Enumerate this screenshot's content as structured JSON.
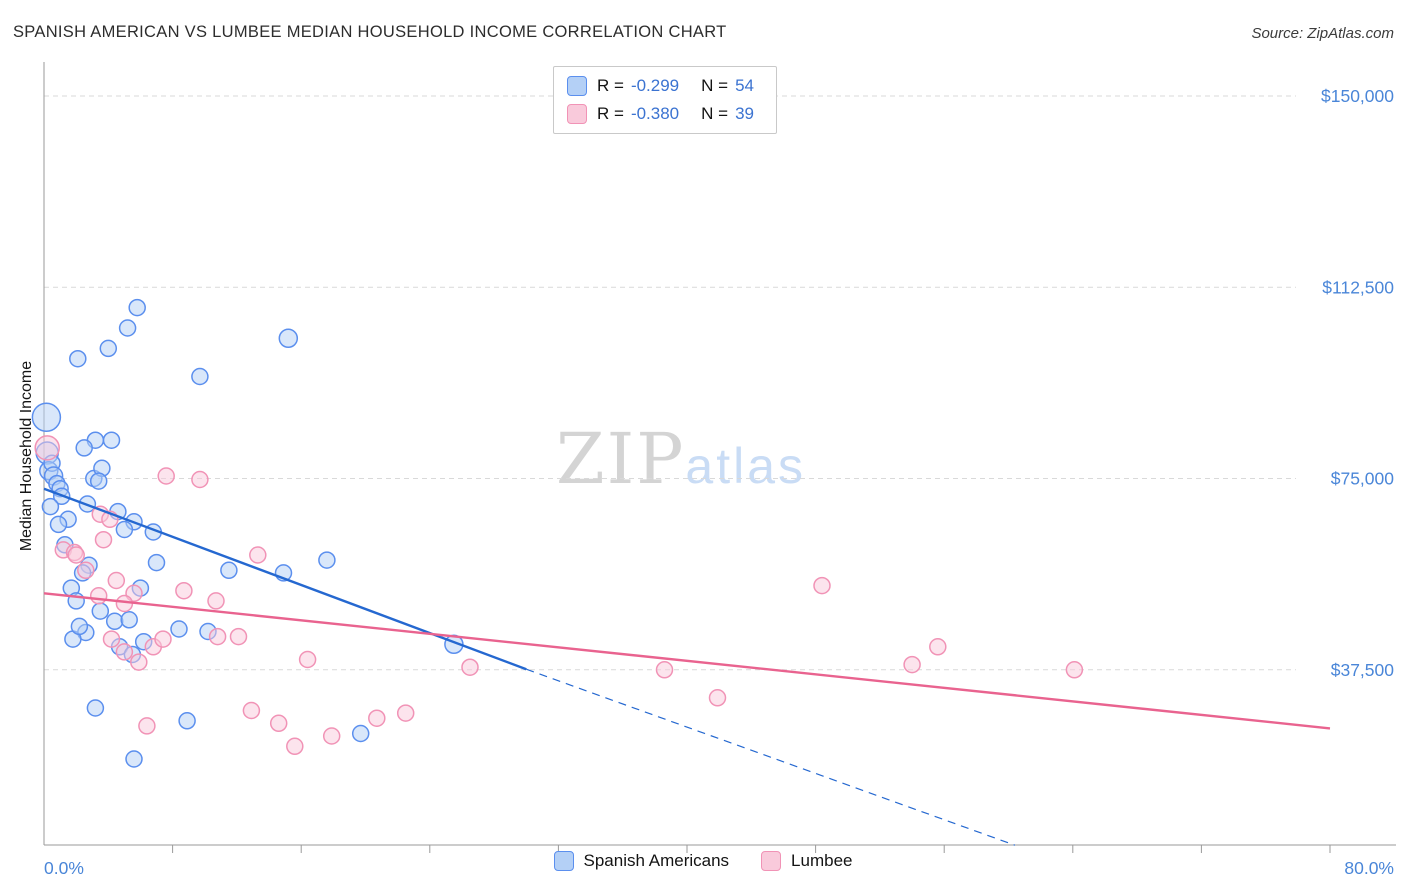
{
  "header": {
    "title": "SPANISH AMERICAN VS LUMBEE MEDIAN HOUSEHOLD INCOME CORRELATION CHART",
    "source": "Source: ZipAtlas.com"
  },
  "watermark": {
    "part1": "ZIP",
    "part2": "atlas"
  },
  "top_legend": {
    "rows": [
      {
        "r_label": "R =",
        "r_value": "-0.299",
        "n_label": "N =",
        "n_value": "54"
      },
      {
        "r_label": "R =",
        "r_value": "-0.380",
        "n_label": "N =",
        "n_value": "39"
      }
    ]
  },
  "bottom_legend": {
    "items": [
      {
        "label": "Spanish Americans"
      },
      {
        "label": "Lumbee"
      }
    ]
  },
  "colors": {
    "blue_fill": "#b4d0f6",
    "blue_stroke": "#5b8fee",
    "pink_fill": "#f9cadb",
    "pink_stroke": "#f193b6",
    "blue_trend": "#2568d0",
    "pink_trend": "#e9638f",
    "axis_label": "#4a86d8",
    "legend_value": "#3b73d1",
    "gridline": "#d9d9d9",
    "axis_line": "#9a9a9a",
    "watermark_gray": "#d4d4d4",
    "watermark_blue": "#c9dcf5"
  },
  "chart_data": {
    "type": "scatter",
    "title": "Spanish American vs Lumbee Median Household Income Correlation",
    "ylabel": "Median Household Income",
    "x_unit": "%",
    "xlim": [
      0,
      80
    ],
    "ylim": [
      0,
      150000
    ],
    "grid": "horizontal-dashed",
    "legend_position": "top-center",
    "x_axis_labels": {
      "left": "0.0%",
      "right": "80.0%"
    },
    "y_gridlines": [
      {
        "value": 150000,
        "label": "$150,000"
      },
      {
        "value": 112500,
        "label": "$112,500"
      },
      {
        "value": 75000,
        "label": "$75,000"
      },
      {
        "value": 37500,
        "label": "$37,500"
      }
    ],
    "series": [
      {
        "id": "spanish-americans",
        "name": "Spanish Americans",
        "R": -0.299,
        "N": 54,
        "fill": "#b4d0f6",
        "stroke": "#5b8fee",
        "points": [
          [
            0.15,
            87000,
            14
          ],
          [
            0.2,
            80000,
            11
          ],
          [
            0.3,
            76500,
            9
          ],
          [
            0.5,
            78000,
            8
          ],
          [
            0.6,
            75500,
            9
          ],
          [
            0.8,
            74000,
            8
          ],
          [
            1.0,
            73000,
            8
          ],
          [
            1.1,
            71500,
            8
          ],
          [
            0.4,
            69500,
            8
          ],
          [
            1.5,
            67000,
            8
          ],
          [
            0.9,
            66000,
            8
          ],
          [
            1.3,
            62000,
            8
          ],
          [
            2.1,
            98500,
            8
          ],
          [
            4.0,
            100500,
            8
          ],
          [
            5.2,
            104500,
            8
          ],
          [
            5.8,
            108500,
            8
          ],
          [
            9.7,
            95000,
            8
          ],
          [
            15.2,
            102500,
            9
          ],
          [
            3.2,
            82500,
            8
          ],
          [
            4.2,
            82500,
            8
          ],
          [
            2.5,
            81000,
            8
          ],
          [
            3.1,
            75000,
            8
          ],
          [
            3.6,
            77000,
            8
          ],
          [
            3.4,
            74500,
            8
          ],
          [
            2.7,
            70000,
            8
          ],
          [
            4.6,
            68500,
            8
          ],
          [
            5.6,
            66500,
            8
          ],
          [
            5.0,
            65000,
            8
          ],
          [
            6.8,
            64500,
            8
          ],
          [
            7.0,
            58500,
            8
          ],
          [
            2.8,
            58000,
            8
          ],
          [
            2.4,
            56500,
            8
          ],
          [
            1.7,
            53500,
            8
          ],
          [
            6.0,
            53500,
            8
          ],
          [
            11.5,
            57000,
            8
          ],
          [
            14.9,
            56500,
            8
          ],
          [
            17.6,
            59000,
            8
          ],
          [
            2.0,
            51000,
            8
          ],
          [
            3.5,
            49000,
            8
          ],
          [
            4.4,
            47000,
            8
          ],
          [
            5.3,
            47300,
            8
          ],
          [
            2.6,
            44800,
            8
          ],
          [
            1.8,
            43500,
            8
          ],
          [
            4.7,
            42000,
            8
          ],
          [
            5.5,
            40500,
            8
          ],
          [
            6.2,
            43000,
            8
          ],
          [
            8.4,
            45500,
            8
          ],
          [
            10.2,
            45000,
            8
          ],
          [
            2.2,
            46000,
            8
          ],
          [
            3.2,
            30000,
            8
          ],
          [
            8.9,
            27500,
            8
          ],
          [
            19.7,
            25000,
            8
          ],
          [
            5.6,
            20000,
            8
          ],
          [
            25.5,
            42500,
            9
          ]
        ]
      },
      {
        "id": "lumbee",
        "name": "Lumbee",
        "R": -0.38,
        "N": 39,
        "fill": "#f9cadb",
        "stroke": "#f193b6",
        "points": [
          [
            0.2,
            81000,
            12
          ],
          [
            1.2,
            61000,
            8
          ],
          [
            1.9,
            60500,
            8
          ],
          [
            2.6,
            57000,
            8
          ],
          [
            3.5,
            68000,
            8
          ],
          [
            4.1,
            67000,
            8
          ],
          [
            3.7,
            63000,
            8
          ],
          [
            7.6,
            75500,
            8
          ],
          [
            9.7,
            74800,
            8
          ],
          [
            3.4,
            52000,
            8
          ],
          [
            5.6,
            52500,
            8
          ],
          [
            4.2,
            43500,
            8
          ],
          [
            5.0,
            41000,
            8
          ],
          [
            5.9,
            39000,
            8
          ],
          [
            6.8,
            42000,
            8
          ],
          [
            7.4,
            43500,
            8
          ],
          [
            8.7,
            53000,
            8
          ],
          [
            10.7,
            51000,
            8
          ],
          [
            10.8,
            44000,
            8
          ],
          [
            12.1,
            44000,
            8
          ],
          [
            13.3,
            60000,
            8
          ],
          [
            16.4,
            39500,
            8
          ],
          [
            12.9,
            29500,
            8
          ],
          [
            15.6,
            22500,
            8
          ],
          [
            17.9,
            24500,
            8
          ],
          [
            14.6,
            27000,
            8
          ],
          [
            20.7,
            28000,
            8
          ],
          [
            22.5,
            29000,
            8
          ],
          [
            6.4,
            26500,
            8
          ],
          [
            26.5,
            38000,
            8
          ],
          [
            38.6,
            37500,
            8
          ],
          [
            41.9,
            32000,
            8
          ],
          [
            48.4,
            54000,
            8
          ],
          [
            54.0,
            38500,
            8
          ],
          [
            55.6,
            42000,
            8
          ],
          [
            64.1,
            37500,
            8
          ],
          [
            5.0,
            50500,
            8
          ],
          [
            2.0,
            60000,
            8
          ],
          [
            4.5,
            55000,
            8
          ]
        ]
      }
    ],
    "trend_lines": [
      {
        "id": "spanish-americans",
        "color": "#2568d0",
        "solid": [
          [
            0,
            73000
          ],
          [
            30,
            37600
          ]
        ],
        "dashed": [
          [
            30,
            37600
          ],
          [
            60.4,
            3100
          ]
        ]
      },
      {
        "id": "lumbee",
        "color": "#e9638f",
        "solid": [
          [
            0,
            52500
          ],
          [
            80,
            26000
          ]
        ]
      }
    ]
  }
}
